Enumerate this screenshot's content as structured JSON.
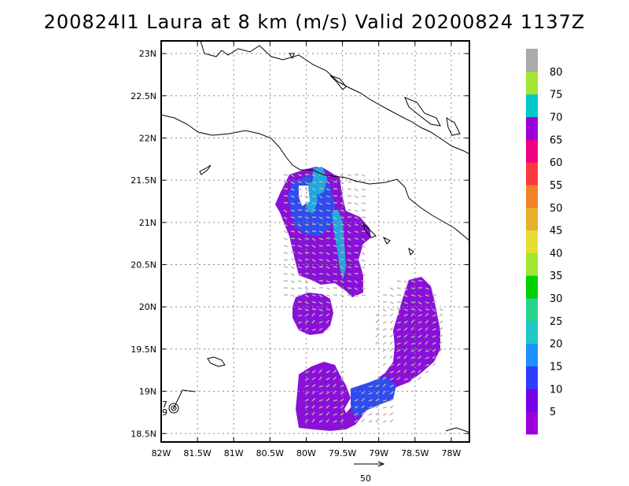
{
  "title": "200824I1 Laura at 8 km (m/s) Valid 20200824 1137Z",
  "map": {
    "lon_range": [
      -82.0,
      -77.75
    ],
    "lat_range": [
      18.4,
      23.15
    ],
    "lat_ticks": [
      "18.5N",
      "19N",
      "19.5N",
      "20N",
      "20.5N",
      "21N",
      "21.5N",
      "22N",
      "22.5N",
      "23N"
    ],
    "lat_values": [
      18.5,
      19.0,
      19.5,
      20.0,
      20.5,
      21.0,
      21.5,
      22.0,
      22.5,
      23.0
    ],
    "lon_ticks": [
      "82W",
      "81.5W",
      "81W",
      "80.5W",
      "80W",
      "79.5W",
      "79W",
      "78.5W",
      "78W"
    ],
    "lon_values": [
      -82.0,
      -81.5,
      -81.0,
      -80.5,
      -80.0,
      -79.5,
      -79.0,
      -78.5,
      -78.0
    ],
    "grid": true,
    "storm_marker": {
      "lon": -81.85,
      "lat": 18.77,
      "labels": [
        "7",
        "9"
      ]
    }
  },
  "colorbar": {
    "levels": [
      "5",
      "10",
      "15",
      "20",
      "25",
      "30",
      "35",
      "40",
      "45",
      "50",
      "55",
      "60",
      "65",
      "70",
      "75",
      "80"
    ],
    "colors": [
      "#9b00d8",
      "#7800e6",
      "#2f3cff",
      "#1e90ff",
      "#1ec8c8",
      "#28d28c",
      "#00d200",
      "#a0e632",
      "#e6dc32",
      "#e6af2d",
      "#f08228",
      "#fa3c3c",
      "#f00082",
      "#9b00d8",
      "#00c8c8",
      "#a0e632",
      "#aaaaaa"
    ]
  },
  "reference_vector": {
    "label": "50"
  },
  "colors": {
    "wind_main": "#8a10d8",
    "wind_blue": "#2f4cf0",
    "wind_cyan": "#1fa8e0",
    "vector": "#b4b4b4"
  }
}
